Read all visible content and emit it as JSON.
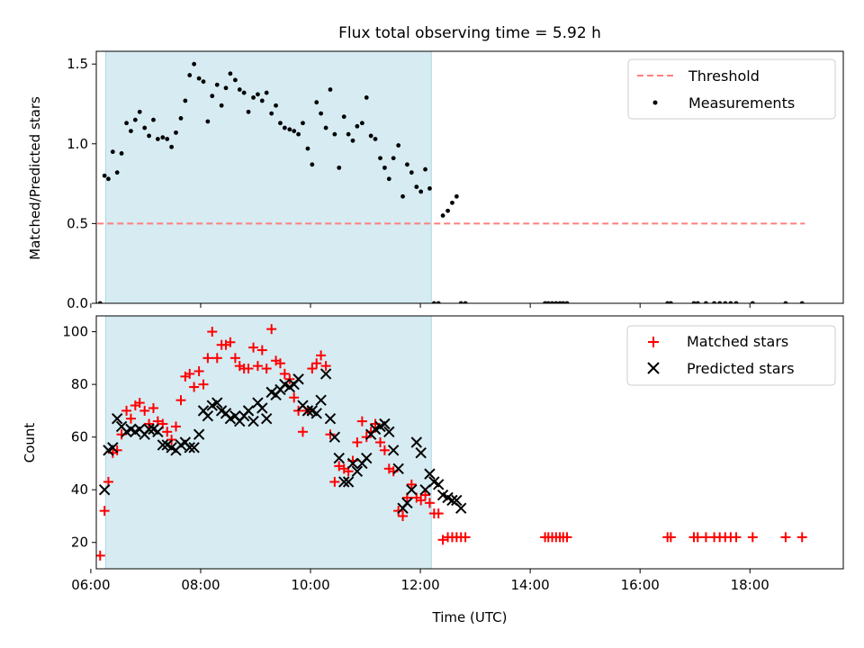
{
  "title": "Flux total observing time = 5.92 h",
  "colors": {
    "threshold": "#ff7f7f",
    "matched": "#ff0000",
    "predicted": "#000000",
    "shade": "#add8e6"
  },
  "chart_data": [
    {
      "type": "scatter",
      "title": "Flux total observing time = 5.92 h",
      "ylabel": "Matched/Predicted stars",
      "xlim": [
        6.1,
        19.7
      ],
      "ylim": [
        0,
        1.58
      ],
      "yticks": [
        "0.0",
        "0.5",
        "1.0",
        "1.5"
      ],
      "shaded_interval": [
        6.27,
        12.2
      ],
      "legend_position": "upper right",
      "threshold": {
        "name": "Threshold",
        "x": [
          6.12,
          19.0
        ],
        "y": 0.5
      },
      "series": [
        {
          "name": "Measurements",
          "x": [
            6.08,
            6.17,
            6.25,
            6.32,
            6.4,
            6.48,
            6.56,
            6.65,
            6.73,
            6.81,
            6.89,
            6.98,
            7.06,
            7.14,
            7.22,
            7.31,
            7.39,
            7.47,
            7.55,
            7.64,
            7.72,
            7.8,
            7.88,
            7.97,
            8.05,
            8.13,
            8.21,
            8.3,
            8.38,
            8.46,
            8.54,
            8.63,
            8.71,
            8.79,
            8.87,
            8.96,
            9.04,
            9.12,
            9.2,
            9.29,
            9.37,
            9.45,
            9.53,
            9.62,
            9.7,
            9.78,
            9.86,
            9.95,
            10.03,
            10.11,
            10.19,
            10.28,
            10.36,
            10.44,
            10.52,
            10.61,
            10.69,
            10.77,
            10.85,
            10.94,
            11.02,
            11.1,
            11.18,
            11.27,
            11.35,
            11.43,
            11.51,
            11.6,
            11.68,
            11.76,
            11.84,
            11.93,
            12.01,
            12.09,
            12.17,
            12.25,
            12.33,
            12.41,
            12.5,
            12.58,
            12.66,
            12.74,
            12.82,
            14.27,
            14.33,
            14.4,
            14.47,
            14.54,
            14.6,
            14.67,
            16.5,
            16.56,
            16.98,
            17.05,
            17.2,
            17.35,
            17.45,
            17.55,
            17.65,
            17.75,
            18.05,
            18.65,
            18.95
          ],
          "y": [
            0,
            0,
            0.8,
            0.78,
            0.95,
            0.82,
            0.94,
            1.13,
            1.08,
            1.15,
            1.2,
            1.1,
            1.05,
            1.15,
            1.03,
            1.04,
            1.03,
            0.98,
            1.07,
            1.16,
            1.27,
            1.43,
            1.5,
            1.41,
            1.39,
            1.14,
            1.3,
            1.37,
            1.24,
            1.35,
            1.44,
            1.4,
            1.34,
            1.32,
            1.2,
            1.29,
            1.31,
            1.27,
            1.32,
            1.19,
            1.24,
            1.13,
            1.1,
            1.09,
            1.08,
            1.06,
            1.13,
            0.97,
            0.87,
            1.26,
            1.19,
            1.1,
            1.34,
            1.06,
            0.85,
            1.17,
            1.06,
            1.02,
            1.11,
            1.13,
            1.29,
            1.05,
            1.03,
            0.91,
            0.85,
            0.78,
            0.91,
            0.99,
            0.67,
            0.87,
            0.82,
            0.73,
            0.7,
            0.84,
            0.72,
            0,
            0,
            0.55,
            0.58,
            0.63,
            0.67,
            0,
            0,
            0,
            0,
            0,
            0,
            0,
            0,
            0,
            0,
            0,
            0,
            0,
            0,
            0,
            0,
            0,
            0,
            0,
            0,
            0,
            0
          ]
        }
      ]
    },
    {
      "type": "scatter",
      "xlabel": "Time (UTC)",
      "ylabel": "Count",
      "xlim": [
        6.1,
        19.7
      ],
      "ylim": [
        10,
        106
      ],
      "xticks": [
        "06:00",
        "08:00",
        "10:00",
        "12:00",
        "14:00",
        "16:00",
        "18:00"
      ],
      "yticks": [
        "20",
        "40",
        "60",
        "80",
        "100"
      ],
      "shaded_interval": [
        6.27,
        12.2
      ],
      "legend_position": "upper right",
      "series": [
        {
          "name": "Matched stars",
          "marker": "plus",
          "x": [
            6.08,
            6.17,
            6.25,
            6.32,
            6.4,
            6.48,
            6.56,
            6.65,
            6.73,
            6.81,
            6.89,
            6.98,
            7.06,
            7.14,
            7.22,
            7.31,
            7.39,
            7.47,
            7.55,
            7.64,
            7.72,
            7.8,
            7.88,
            7.97,
            8.05,
            8.13,
            8.21,
            8.3,
            8.38,
            8.46,
            8.54,
            8.63,
            8.71,
            8.79,
            8.87,
            8.96,
            9.04,
            9.12,
            9.2,
            9.29,
            9.37,
            9.45,
            9.53,
            9.62,
            9.7,
            9.78,
            9.86,
            9.95,
            10.03,
            10.11,
            10.19,
            10.28,
            10.36,
            10.44,
            10.52,
            10.61,
            10.69,
            10.77,
            10.85,
            10.94,
            11.02,
            11.1,
            11.18,
            11.27,
            11.35,
            11.43,
            11.51,
            11.6,
            11.68,
            11.76,
            11.84,
            11.93,
            12.01,
            12.09,
            12.17,
            12.25,
            12.33,
            12.41,
            12.5,
            12.58,
            12.66,
            12.74,
            12.82,
            14.27,
            14.33,
            14.4,
            14.47,
            14.54,
            14.6,
            14.67,
            16.5,
            16.56,
            16.98,
            17.05,
            17.2,
            17.35,
            17.45,
            17.55,
            17.65,
            17.75,
            18.05,
            18.65,
            18.95
          ],
          "y": [
            15,
            15,
            32,
            43,
            54,
            55,
            61,
            70,
            67,
            72,
            73,
            70,
            65,
            71,
            66,
            65,
            62,
            59,
            64,
            74,
            83,
            84,
            79,
            85,
            80,
            90,
            100,
            90,
            95,
            95,
            96,
            90,
            87,
            86,
            86,
            94,
            87,
            93,
            86,
            101,
            89,
            88,
            84,
            82,
            75,
            70,
            62,
            70,
            86,
            88,
            91,
            87,
            61,
            43,
            49,
            48,
            47,
            51,
            58,
            66,
            60,
            62,
            65,
            58,
            55,
            48,
            47,
            32,
            30,
            37,
            42,
            37,
            36,
            38,
            35,
            31,
            31,
            21,
            22,
            22,
            22,
            22,
            22,
            22,
            22,
            22,
            22,
            22,
            22,
            22,
            22,
            22,
            22,
            22,
            22,
            22,
            22,
            22,
            22,
            22,
            22,
            22,
            22
          ]
        },
        {
          "name": "Predicted stars",
          "marker": "x",
          "x": [
            6.25,
            6.32,
            6.4,
            6.48,
            6.56,
            6.65,
            6.73,
            6.81,
            6.89,
            6.98,
            7.06,
            7.14,
            7.22,
            7.31,
            7.39,
            7.47,
            7.55,
            7.64,
            7.72,
            7.8,
            7.88,
            7.97,
            8.05,
            8.13,
            8.21,
            8.3,
            8.38,
            8.46,
            8.54,
            8.63,
            8.71,
            8.79,
            8.87,
            8.96,
            9.04,
            9.12,
            9.2,
            9.29,
            9.37,
            9.45,
            9.53,
            9.62,
            9.7,
            9.78,
            9.86,
            9.95,
            10.03,
            10.11,
            10.19,
            10.28,
            10.36,
            10.44,
            10.52,
            10.61,
            10.69,
            10.77,
            10.85,
            10.94,
            11.02,
            11.1,
            11.18,
            11.27,
            11.35,
            11.43,
            11.51,
            11.6,
            11.68,
            11.76,
            11.84,
            11.93,
            12.01,
            12.09,
            12.17,
            12.25,
            12.33,
            12.41,
            12.5,
            12.58,
            12.66,
            12.74
          ],
          "y": [
            40,
            55,
            56,
            67,
            64,
            62,
            63,
            62,
            63,
            61,
            63,
            63,
            62,
            57,
            57,
            56,
            55,
            57,
            58,
            56,
            56,
            61,
            70,
            68,
            72,
            73,
            70,
            69,
            67,
            68,
            66,
            68,
            70,
            66,
            73,
            71,
            67,
            77,
            76,
            78,
            80,
            79,
            80,
            82,
            72,
            70,
            70,
            69,
            74,
            84,
            67,
            60,
            52,
            43,
            43,
            50,
            47,
            50,
            52,
            61,
            63,
            64,
            65,
            62,
            55,
            48,
            33,
            35,
            40,
            58,
            54,
            40,
            46,
            43,
            42,
            38,
            37,
            36,
            36,
            33
          ]
        }
      ]
    }
  ],
  "legend_top": [
    {
      "label": "Threshold",
      "icon": "dashed-line-icon"
    },
    {
      "label": "Measurements",
      "icon": "dot-marker-icon"
    }
  ],
  "legend_bottom": [
    {
      "label": "Matched stars",
      "icon": "plus-marker-icon"
    },
    {
      "label": "Predicted stars",
      "icon": "x-marker-icon"
    }
  ]
}
